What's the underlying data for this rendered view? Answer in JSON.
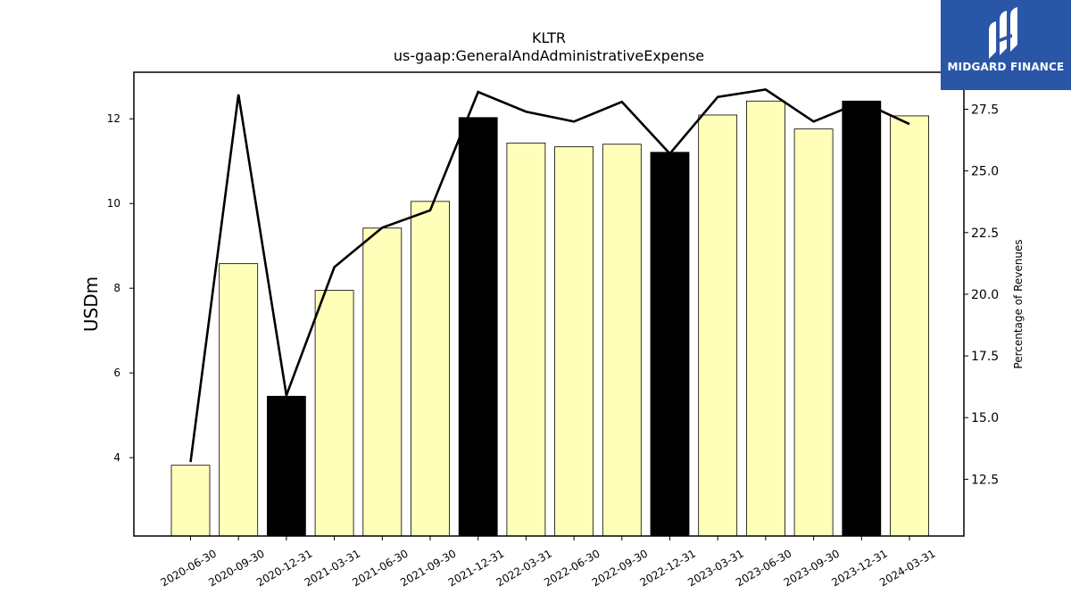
{
  "chart_data": {
    "type": "bar",
    "title": "KLTR",
    "subtitle": "us-gaap:GeneralAndAdministrativeExpense",
    "ylabel": "USDm",
    "y2label": "Percentage of Revenues",
    "ylim": [
      2.15,
      13.1
    ],
    "y2lim": [
      10.2,
      29.0
    ],
    "yticks": [
      4,
      6,
      8,
      10,
      12
    ],
    "y2ticks": [
      12.5,
      15.0,
      17.5,
      20.0,
      22.5,
      25.0,
      27.5
    ],
    "categories": [
      "2020-06-30",
      "2020-09-30",
      "2020-12-31",
      "2021-03-31",
      "2021-06-30",
      "2021-09-30",
      "2021-12-31",
      "2022-03-31",
      "2022-06-30",
      "2022-09-30",
      "2022-12-31",
      "2023-03-31",
      "2023-06-30",
      "2023-09-30",
      "2023-12-31",
      "2024-03-31"
    ],
    "series": [
      {
        "type": "bar",
        "axis": "left",
        "values": [
          3.82,
          8.58,
          5.45,
          7.95,
          9.42,
          10.05,
          12.03,
          11.43,
          11.34,
          11.4,
          11.21,
          12.09,
          12.42,
          11.76,
          12.42,
          12.07
        ],
        "colors": [
          "#ffffb9",
          "#ffffb9",
          "#000000",
          "#ffffb9",
          "#ffffb9",
          "#ffffb9",
          "#000000",
          "#ffffb9",
          "#ffffb9",
          "#ffffb9",
          "#000000",
          "#ffffb9",
          "#ffffb9",
          "#ffffb9",
          "#000000",
          "#ffffb9"
        ]
      },
      {
        "type": "line",
        "axis": "right",
        "values": [
          13.2,
          28.1,
          15.9,
          21.1,
          22.7,
          23.4,
          28.2,
          27.4,
          27.0,
          27.8,
          25.7,
          28.0,
          28.3,
          27.0,
          27.8,
          26.9
        ],
        "color": "#000000"
      }
    ],
    "grid": false,
    "legend": "none"
  },
  "logo": {
    "text": "MIDGARD FINANCE",
    "background": "#2a56a8"
  }
}
